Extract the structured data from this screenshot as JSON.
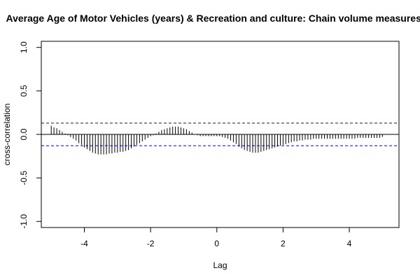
{
  "chart_data": {
    "type": "bar",
    "title": "Average Age of Motor Vehicles (years) & Recreation and culture: Chain volume measures (A",
    "xlabel": "Lag",
    "ylabel": "cross-correlation",
    "xlim": [
      -5.3,
      5.5
    ],
    "ylim": [
      -1.07,
      1.07
    ],
    "x_ticks": [
      -4,
      -2,
      0,
      2,
      4
    ],
    "x_tick_labels": [
      "-4",
      "-2",
      "0",
      "2",
      "4"
    ],
    "y_ticks": [
      -1.0,
      -0.5,
      0.0,
      0.5,
      1.0
    ],
    "y_tick_labels": [
      "-1.0",
      "-0.5",
      "0.0",
      "0.5",
      "1.0"
    ],
    "confidence_band": 0.13,
    "grid": false,
    "colors": {
      "bars": "#000000",
      "band": "#0000ff",
      "zero_line": "#000000"
    },
    "lags": [
      -5.0,
      -4.917,
      -4.833,
      -4.75,
      -4.667,
      -4.583,
      -4.5,
      -4.417,
      -4.333,
      -4.25,
      -4.167,
      -4.083,
      -4.0,
      -3.917,
      -3.833,
      -3.75,
      -3.667,
      -3.583,
      -3.5,
      -3.417,
      -3.333,
      -3.25,
      -3.167,
      -3.083,
      -3.0,
      -2.917,
      -2.833,
      -2.75,
      -2.667,
      -2.583,
      -2.5,
      -2.417,
      -2.333,
      -2.25,
      -2.167,
      -2.083,
      -2.0,
      -1.917,
      -1.833,
      -1.75,
      -1.667,
      -1.583,
      -1.5,
      -1.417,
      -1.333,
      -1.25,
      -1.167,
      -1.083,
      -1.0,
      -0.917,
      -0.833,
      -0.75,
      -0.667,
      -0.583,
      -0.5,
      -0.417,
      -0.333,
      -0.25,
      -0.167,
      -0.083,
      0.0,
      0.083,
      0.167,
      0.25,
      0.333,
      0.417,
      0.5,
      0.583,
      0.667,
      0.75,
      0.833,
      0.917,
      1.0,
      1.083,
      1.167,
      1.25,
      1.333,
      1.417,
      1.5,
      1.583,
      1.667,
      1.75,
      1.833,
      1.917,
      2.0,
      2.083,
      2.167,
      2.25,
      2.333,
      2.417,
      2.5,
      2.583,
      2.667,
      2.75,
      2.833,
      2.917,
      3.0,
      3.083,
      3.167,
      3.25,
      3.333,
      3.417,
      3.5,
      3.583,
      3.667,
      3.75,
      3.833,
      3.917,
      4.0,
      4.083,
      4.167,
      4.25,
      4.333,
      4.417,
      4.5,
      4.583,
      4.667,
      4.75,
      4.833,
      4.917,
      5.0
    ],
    "values": [
      0.1,
      0.08,
      0.07,
      0.05,
      0.03,
      0.01,
      -0.01,
      -0.03,
      -0.05,
      -0.07,
      -0.1,
      -0.12,
      -0.15,
      -0.17,
      -0.19,
      -0.21,
      -0.22,
      -0.23,
      -0.23,
      -0.23,
      -0.23,
      -0.22,
      -0.22,
      -0.21,
      -0.21,
      -0.2,
      -0.2,
      -0.19,
      -0.18,
      -0.16,
      -0.14,
      -0.12,
      -0.1,
      -0.08,
      -0.06,
      -0.04,
      -0.02,
      -0.01,
      0.01,
      0.03,
      0.05,
      0.06,
      0.07,
      0.08,
      0.09,
      0.09,
      0.09,
      0.08,
      0.07,
      0.06,
      0.04,
      0.02,
      0.0,
      -0.01,
      -0.02,
      -0.02,
      -0.02,
      -0.02,
      -0.02,
      -0.02,
      -0.02,
      -0.02,
      -0.03,
      -0.04,
      -0.05,
      -0.07,
      -0.09,
      -0.11,
      -0.14,
      -0.16,
      -0.18,
      -0.19,
      -0.2,
      -0.21,
      -0.21,
      -0.21,
      -0.2,
      -0.19,
      -0.18,
      -0.17,
      -0.16,
      -0.15,
      -0.14,
      -0.13,
      -0.12,
      -0.11,
      -0.1,
      -0.09,
      -0.08,
      -0.08,
      -0.07,
      -0.07,
      -0.06,
      -0.06,
      -0.06,
      -0.05,
      -0.05,
      -0.05,
      -0.05,
      -0.05,
      -0.05,
      -0.05,
      -0.05,
      -0.05,
      -0.05,
      -0.05,
      -0.05,
      -0.05,
      -0.05,
      -0.05,
      -0.05,
      -0.04,
      -0.04,
      -0.04,
      -0.04,
      -0.04,
      -0.04,
      -0.04,
      -0.04,
      -0.04,
      -0.03
    ]
  }
}
